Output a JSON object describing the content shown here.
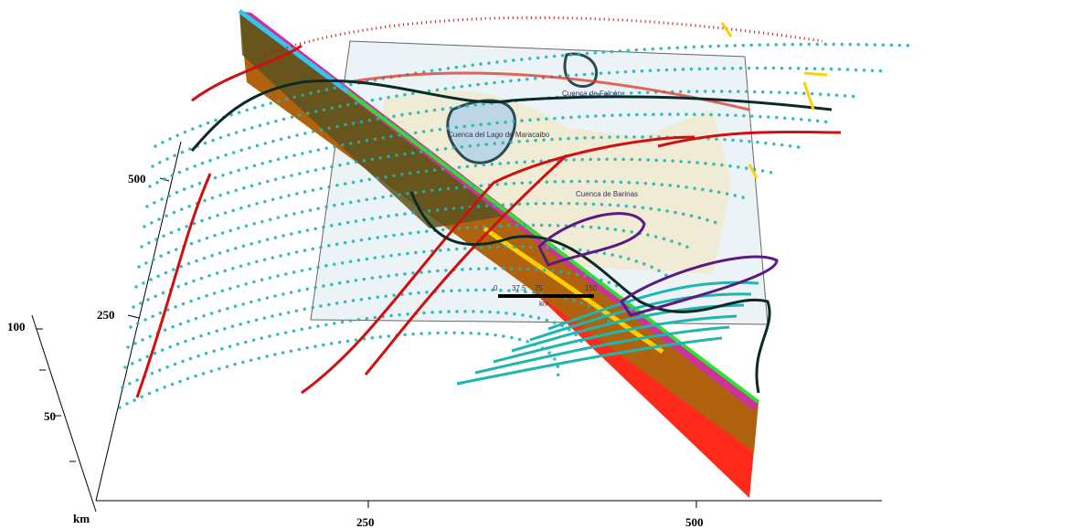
{
  "axes": {
    "vertical": [
      "500",
      "250"
    ],
    "depth": [
      "100",
      "50"
    ],
    "unit": "km",
    "horizontal": [
      "250",
      "500"
    ]
  },
  "map": {
    "basins": [
      "Cuenca de Falcón",
      "Cuenca del Lago de Maracaibo",
      "Cuenca de Barinas"
    ],
    "scale_bar": [
      "0",
      "37.5",
      "75",
      "150",
      "km"
    ]
  }
}
